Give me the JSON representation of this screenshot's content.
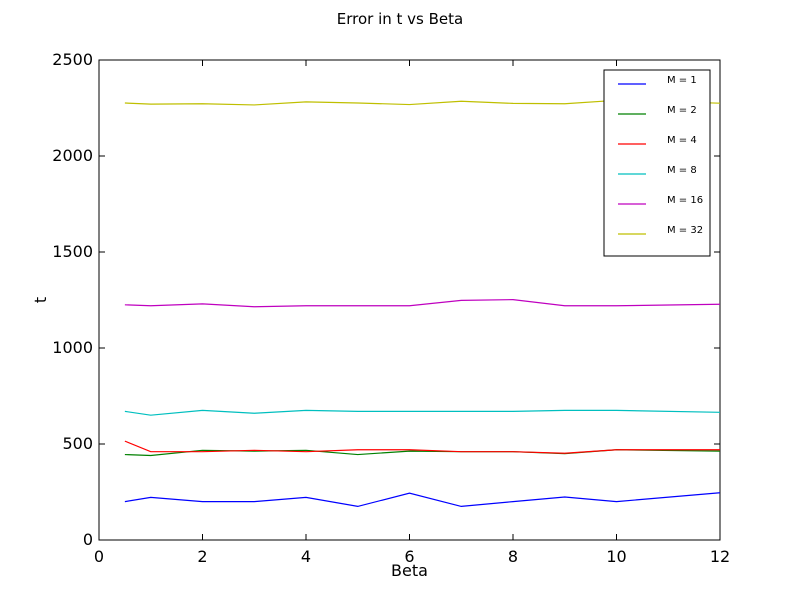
{
  "chart_data": {
    "type": "line",
    "title": "Error in t vs Beta",
    "xlabel": "Beta",
    "ylabel": "t",
    "xlim": [
      0,
      12
    ],
    "ylim": [
      0,
      2500
    ],
    "x_ticks": [
      0,
      2,
      4,
      6,
      8,
      10,
      12
    ],
    "y_ticks": [
      0,
      500,
      1000,
      1500,
      2000,
      2500
    ],
    "grid": false,
    "legend_position": "top-right",
    "x": [
      0.5,
      1,
      2,
      3,
      4,
      5,
      6,
      7,
      8,
      9,
      10,
      12
    ],
    "series": [
      {
        "name": "M = 1",
        "color": "#0000ff",
        "values": [
          200,
          222,
          200,
          200,
          222,
          175,
          244,
          175,
          200,
          224,
          200,
          246
        ]
      },
      {
        "name": "M = 2",
        "color": "#008000",
        "values": [
          445,
          440,
          467,
          463,
          467,
          445,
          463,
          460,
          460,
          450,
          470,
          463
        ]
      },
      {
        "name": "M = 4",
        "color": "#ff0000",
        "values": [
          515,
          460,
          460,
          467,
          460,
          470,
          470,
          460,
          460,
          452,
          470,
          470
        ]
      },
      {
        "name": "M = 8",
        "color": "#00bfbf",
        "values": [
          670,
          650,
          675,
          660,
          675,
          670,
          670,
          670,
          670,
          675,
          675,
          665
        ]
      },
      {
        "name": "M = 16",
        "color": "#bf00bf",
        "values": [
          1225,
          1220,
          1230,
          1215,
          1220,
          1220,
          1220,
          1248,
          1252,
          1220,
          1220,
          1228
        ]
      },
      {
        "name": "M = 32",
        "color": "#bfbf00",
        "values": [
          2276,
          2270,
          2272,
          2266,
          2282,
          2276,
          2268,
          2285,
          2274,
          2272,
          2290,
          2275
        ]
      }
    ]
  }
}
